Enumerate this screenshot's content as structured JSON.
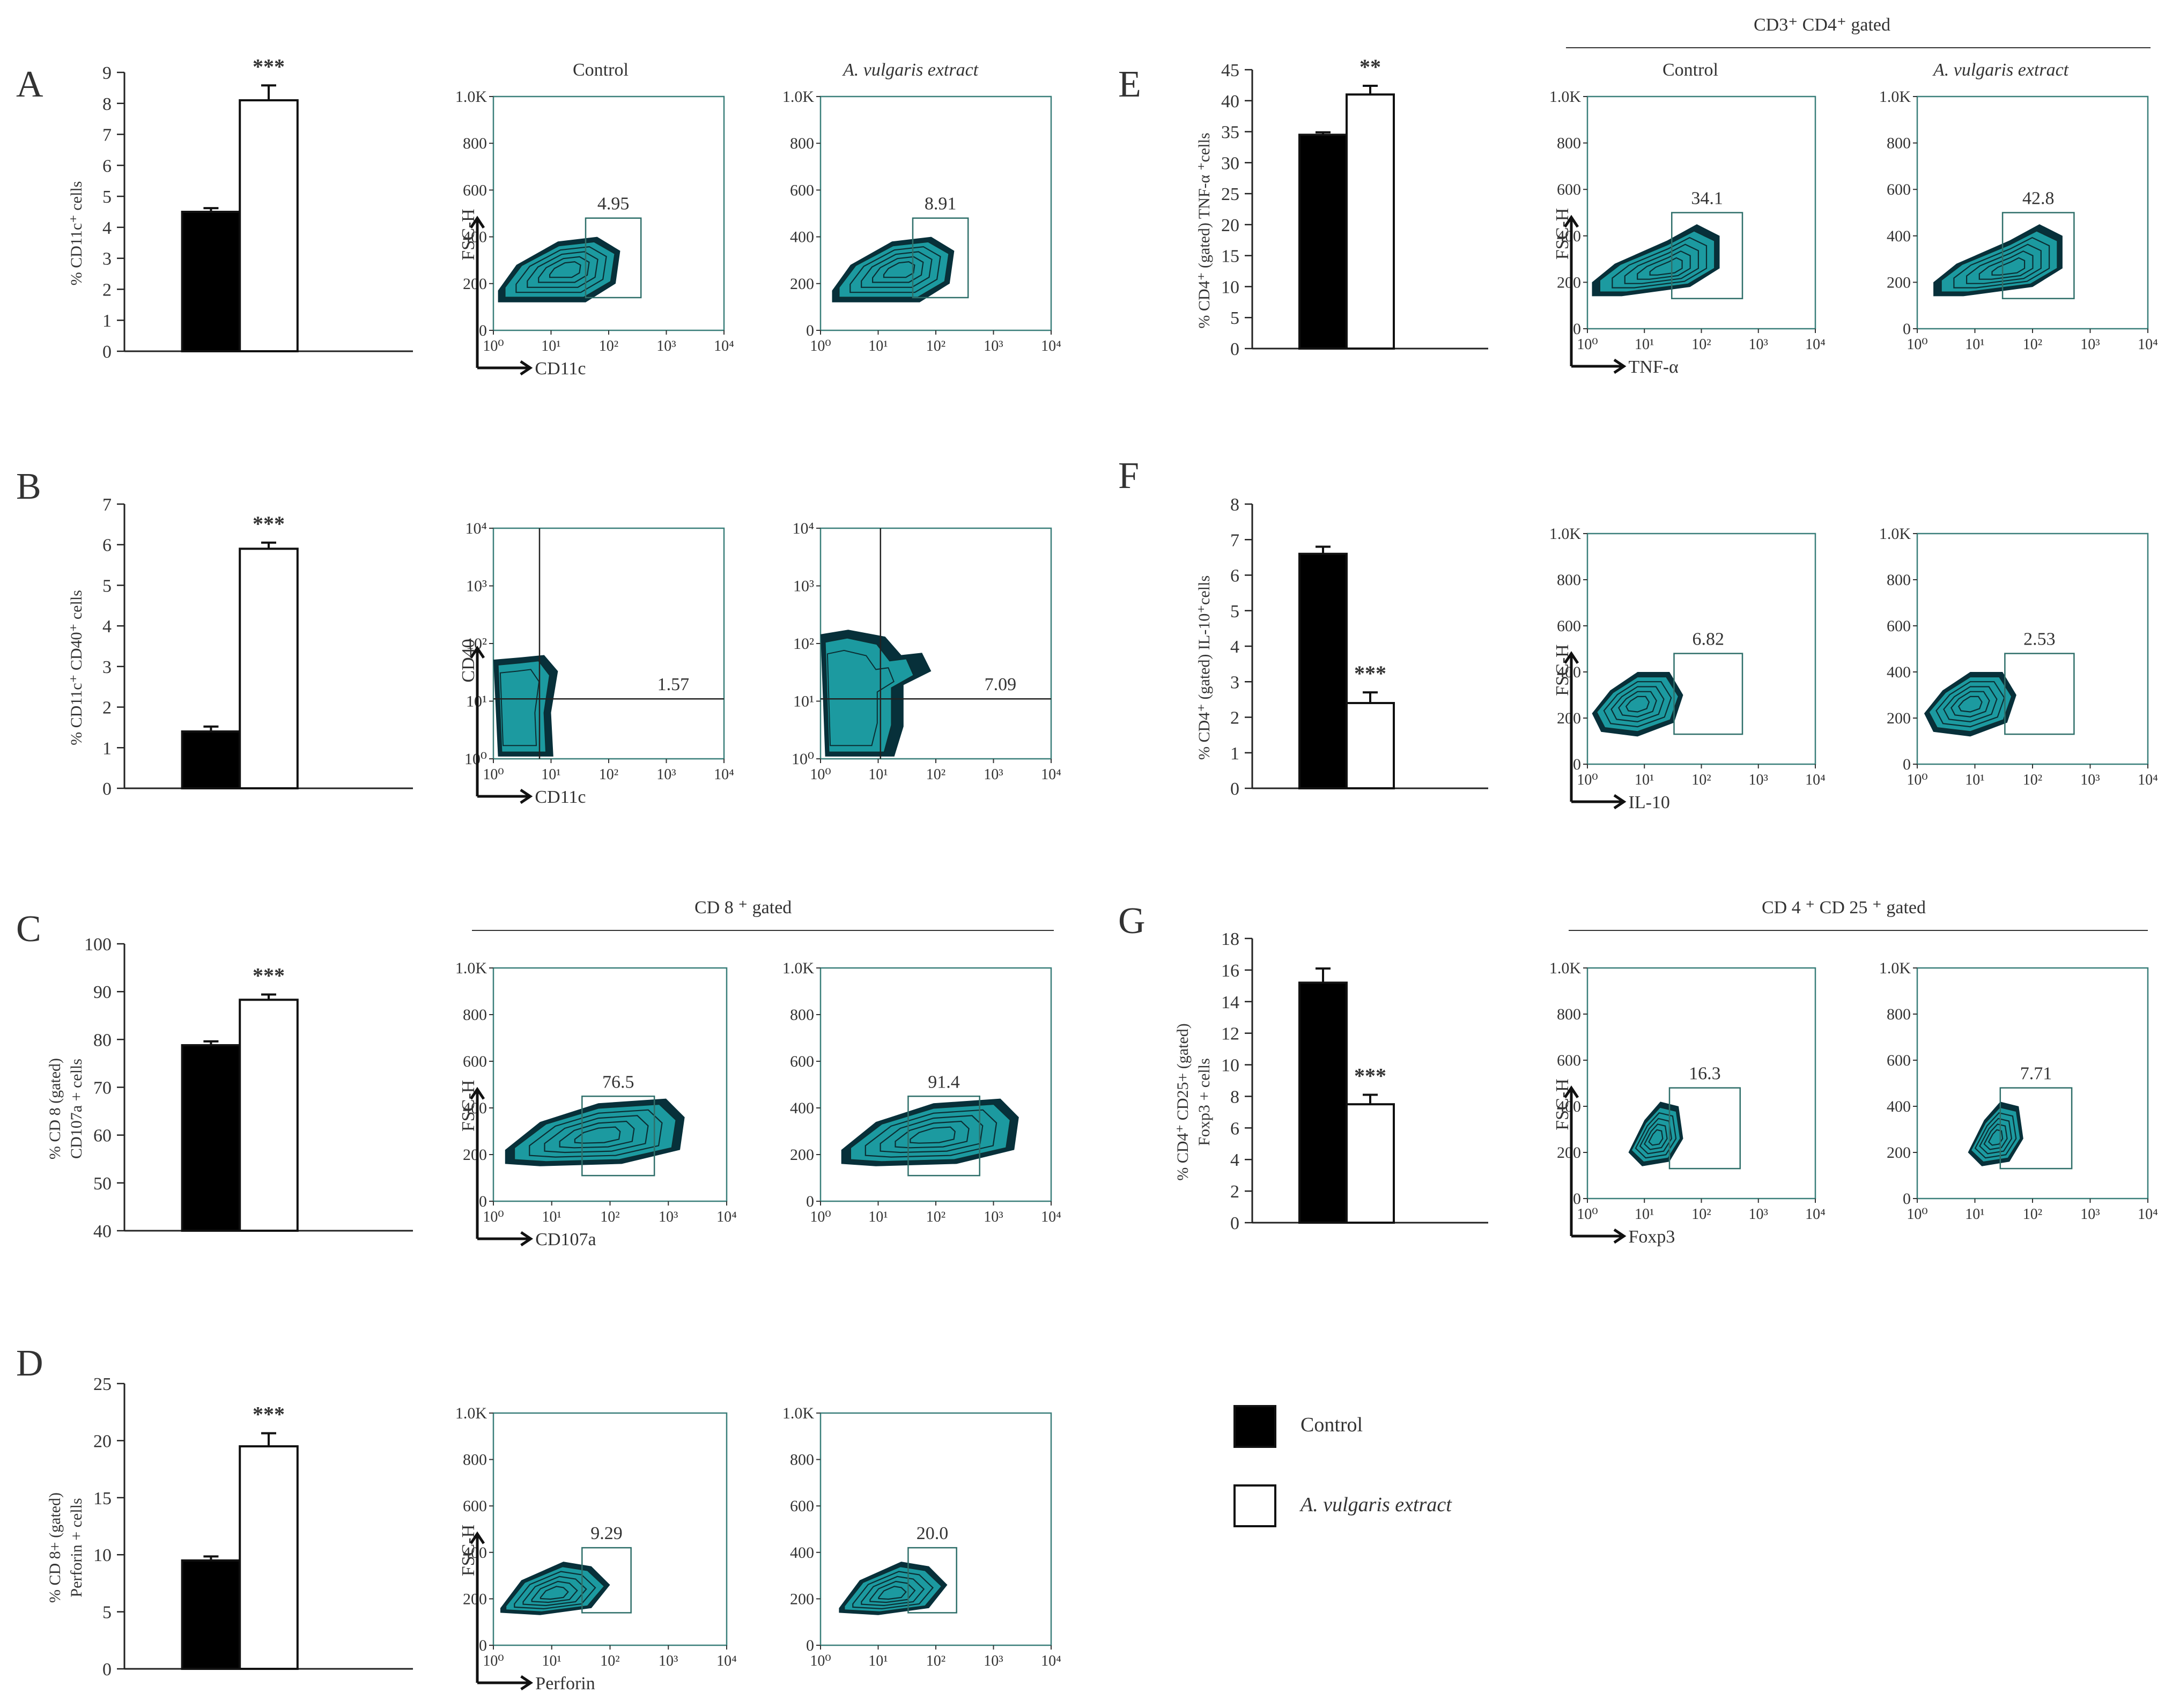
{
  "legend": {
    "control": "Control",
    "treated": "A. vulgaris extract",
    "control_color": "#000000",
    "treated_color": "#ffffff"
  },
  "col_headers": {
    "A": {
      "left": "Control",
      "right": "A. vulgaris extract"
    },
    "E": {
      "left": "Control",
      "right": "A. vulgaris extract",
      "group": "CD3⁺   CD4⁺   gated"
    },
    "C": {
      "group": "CD 8 ⁺ gated"
    },
    "G": {
      "group": "CD 4 ⁺ CD 25 ⁺ gated"
    }
  },
  "flow_colors": {
    "contour_fill": "#1c9aa0",
    "contour_dark": "#07303a",
    "frame": "#3a7f7a"
  },
  "chart_data": [
    {
      "panel": "A",
      "type": "bar",
      "categories": [
        "Control",
        "A. vulgaris extract"
      ],
      "values": [
        4.5,
        8.1
      ],
      "errors": [
        0.12,
        0.48
      ],
      "significance": "***",
      "ylim": [
        0,
        9
      ],
      "yticks": [
        "0",
        "1",
        "2",
        "3",
        "4",
        "5",
        "6",
        "7",
        "8",
        "9"
      ],
      "ylabel_lines": [
        "% CD11c⁺ cells"
      ],
      "flow": {
        "type": "contour",
        "xlabel": "CD11c",
        "ylabel": "FSC-H",
        "yticks": [
          "0",
          "200",
          "400",
          "600",
          "800",
          "1.0K"
        ],
        "xticks": [
          "10⁰",
          "10¹",
          "10²",
          "10³",
          "10⁴"
        ],
        "gate_values": [
          "4.95",
          "8.91"
        ]
      }
    },
    {
      "panel": "B",
      "type": "bar",
      "categories": [
        "Control",
        "A. vulgaris extract"
      ],
      "values": [
        1.4,
        5.9
      ],
      "errors": [
        0.12,
        0.15
      ],
      "significance": "***",
      "ylim": [
        0,
        7
      ],
      "yticks": [
        "0",
        "1",
        "2",
        "3",
        "4",
        "5",
        "6",
        "7"
      ],
      "ylabel_lines": [
        "% CD11c⁺ CD40⁺ cells"
      ],
      "flow": {
        "type": "quadrant",
        "xlabel": "CD11c",
        "ylabel": "CD40",
        "yticks": [
          "10⁰",
          "10¹",
          "10²",
          "10³",
          "10⁴"
        ],
        "xticks": [
          "10⁰",
          "10¹",
          "10²",
          "10³",
          "10⁴"
        ],
        "gate_values": [
          "1.57",
          "7.09"
        ]
      }
    },
    {
      "panel": "C",
      "type": "bar",
      "categories": [
        "Control",
        "A. vulgaris extract"
      ],
      "values": [
        78.8,
        88.3
      ],
      "errors": [
        0.8,
        1.1
      ],
      "significance": "***",
      "ylim": [
        40,
        100
      ],
      "yticks": [
        "40",
        "50",
        "60",
        "70",
        "80",
        "90",
        "100"
      ],
      "ylabel_lines": [
        "% CD 8  (gated)",
        "CD107a + cells"
      ],
      "flow": {
        "type": "contour",
        "xlabel": "CD107a",
        "ylabel": "FSC-H",
        "yticks": [
          "0",
          "200",
          "400",
          "600",
          "800",
          "1.0K"
        ],
        "xticks": [
          "10⁰",
          "10¹",
          "10²",
          "10³",
          "10⁴"
        ],
        "gate_values": [
          "76.5",
          "91.4"
        ]
      }
    },
    {
      "panel": "D",
      "type": "bar",
      "categories": [
        "Control",
        "A. vulgaris extract"
      ],
      "values": [
        9.5,
        19.5
      ],
      "errors": [
        0.35,
        1.15
      ],
      "significance": "***",
      "ylim": [
        0,
        25
      ],
      "yticks": [
        "0",
        "5",
        "10",
        "15",
        "20",
        "25"
      ],
      "ylabel_lines": [
        "% CD 8+ (gated)",
        "Perforin + cells"
      ],
      "flow": {
        "type": "contour",
        "xlabel": "Perforin",
        "ylabel": "FSC-H",
        "yticks": [
          "0",
          "200",
          "400",
          "600",
          "800",
          "1.0K"
        ],
        "xticks": [
          "10⁰",
          "10¹",
          "10²",
          "10³",
          "10⁴"
        ],
        "gate_values": [
          "9.29",
          "20.0"
        ]
      }
    },
    {
      "panel": "E",
      "type": "bar",
      "categories": [
        "Control",
        "A. vulgaris extract"
      ],
      "values": [
        34.5,
        41.0
      ],
      "errors": [
        0.4,
        1.4
      ],
      "significance": "**",
      "ylim": [
        0,
        45
      ],
      "yticks": [
        "0",
        "5",
        "10",
        "15",
        "20",
        "25",
        "30",
        "35",
        "40",
        "45"
      ],
      "ylabel_lines": [
        "% CD4⁺ (gated)  TNF-α ⁺cells"
      ],
      "flow": {
        "type": "contour",
        "xlabel": "TNF-α",
        "ylabel": "FSC-H",
        "yticks": [
          "0",
          "200",
          "400",
          "600",
          "800",
          "1.0K"
        ],
        "xticks": [
          "10⁰",
          "10¹",
          "10²",
          "10³",
          "10⁴"
        ],
        "gate_values": [
          "34.1",
          "42.8"
        ]
      }
    },
    {
      "panel": "F",
      "type": "bar",
      "categories": [
        "Control",
        "A. vulgaris extract"
      ],
      "values": [
        6.6,
        2.4
      ],
      "errors": [
        0.2,
        0.3
      ],
      "significance": "***",
      "ylim": [
        0,
        8
      ],
      "yticks": [
        "0",
        "1",
        "2",
        "3",
        "4",
        "5",
        "6",
        "7",
        "8"
      ],
      "ylabel_lines": [
        "% CD4⁺ (gated)     IL-10⁺cells"
      ],
      "flow": {
        "type": "contour",
        "xlabel": "IL-10",
        "ylabel": "FSC-H",
        "yticks": [
          "0",
          "200",
          "400",
          "600",
          "800",
          "1.0K"
        ],
        "xticks": [
          "10⁰",
          "10¹",
          "10²",
          "10³",
          "10⁴"
        ],
        "gate_values": [
          "6.82",
          "2.53"
        ]
      }
    },
    {
      "panel": "G",
      "type": "bar",
      "categories": [
        "Control",
        "A. vulgaris extract"
      ],
      "values": [
        15.2,
        7.5
      ],
      "errors": [
        0.9,
        0.6
      ],
      "significance": "***",
      "ylim": [
        0,
        18
      ],
      "yticks": [
        "0",
        "2",
        "4",
        "6",
        "8",
        "10",
        "12",
        "14",
        "16",
        "18"
      ],
      "ylabel_lines": [
        "% CD4⁺ CD25+ (gated)",
        "Foxp3 + cells"
      ],
      "flow": {
        "type": "contour",
        "xlabel": "Foxp3",
        "ylabel": "FSC-H",
        "yticks": [
          "0",
          "200",
          "400",
          "600",
          "800",
          "1.0K"
        ],
        "xticks": [
          "10⁰",
          "10¹",
          "10²",
          "10³",
          "10⁴"
        ],
        "gate_values": [
          "16.3",
          "7.71"
        ]
      }
    }
  ]
}
